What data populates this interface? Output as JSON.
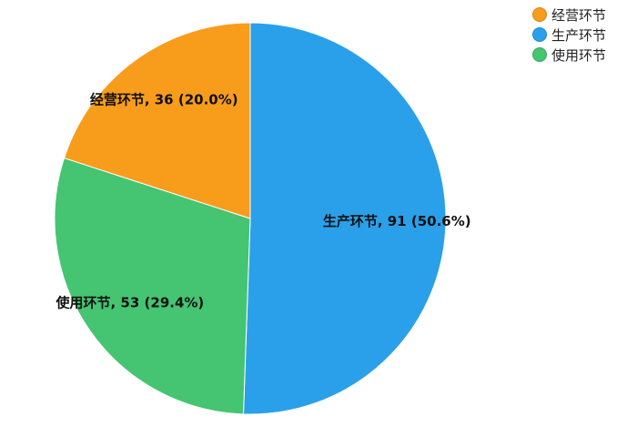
{
  "chart_data": {
    "type": "pie",
    "start_angle": "top",
    "direction": "clockwise",
    "slices": [
      {
        "label": "生产环节",
        "value": 91,
        "percent": "50.6%",
        "color": "#2AA0EA"
      },
      {
        "label": "使用环节",
        "value": 53,
        "percent": "29.4%",
        "color": "#45C472"
      },
      {
        "label": "经营环节",
        "value": 36,
        "percent": "20.0%",
        "color": "#F89C1C"
      }
    ],
    "legend": {
      "placement": "top-right",
      "entries": [
        {
          "label": "经营环节",
          "color": "#F89C1C"
        },
        {
          "label": "生产环节",
          "color": "#2AA0EA"
        },
        {
          "label": "使用环节",
          "color": "#45C472"
        }
      ]
    }
  }
}
